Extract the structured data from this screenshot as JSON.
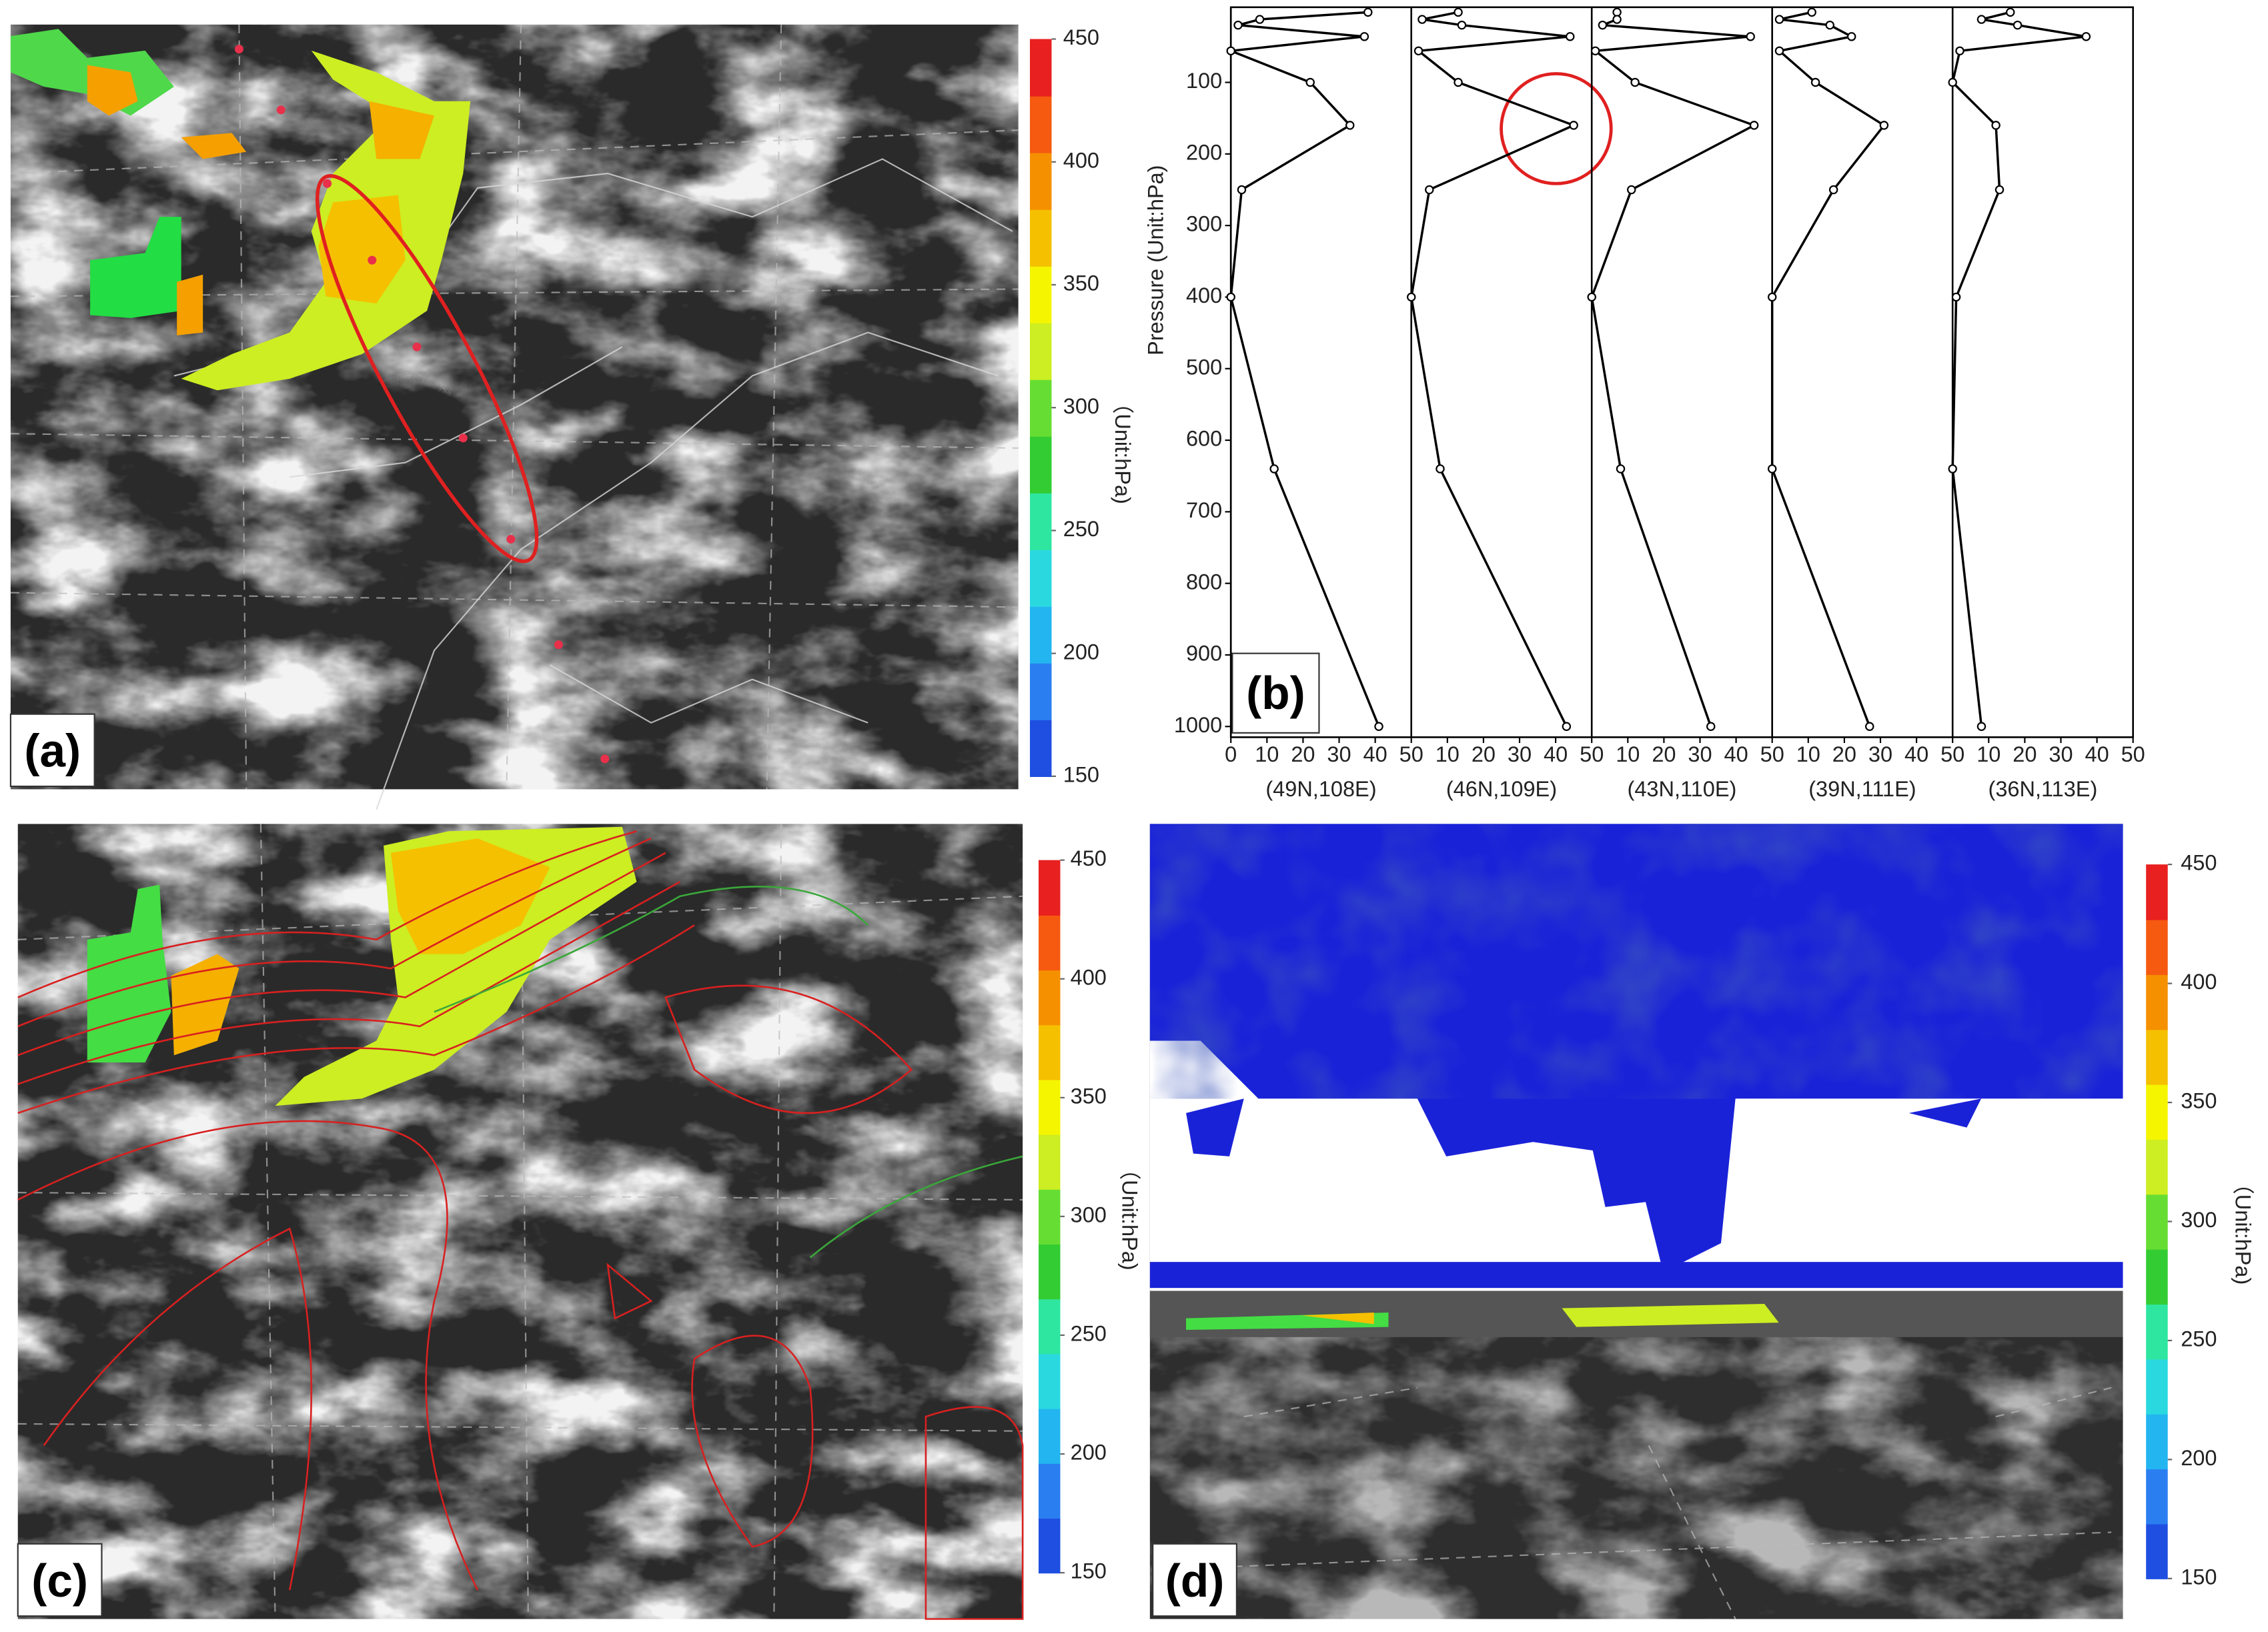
{
  "chart_data": [
    {
      "type": "map",
      "label": "(a)",
      "colorbar_label": "（Unit:hPa)",
      "colorbar_lim": [
        150,
        450
      ],
      "colorbar_ticks": [
        150,
        200,
        250,
        300,
        350,
        400,
        450
      ],
      "colorbar_colors": [
        "#1f4fe0",
        "#2a7ef0",
        "#22b5f0",
        "#2ad8e0",
        "#2ee6a0",
        "#33cc33",
        "#66dd33",
        "#ccee22",
        "#f5f500",
        "#f5c000",
        "#f59000",
        "#f55a10",
        "#e82020"
      ]
    },
    {
      "type": "profile",
      "label": "(b)",
      "ylabel": "Pressure (Unit:hPa)",
      "xlabel": "(49N,108E)",
      "xlim": [
        0,
        50
      ],
      "xticks": [
        0,
        10,
        20,
        30,
        40,
        50
      ],
      "ylim": [
        1015,
        -5
      ],
      "yticks": [
        100,
        200,
        300,
        400,
        500,
        600,
        700,
        800,
        900,
        1000
      ],
      "y": [
        2,
        12,
        20,
        36,
        56,
        100,
        160,
        250,
        400,
        640,
        1000
      ],
      "values": [
        38,
        8,
        2,
        37,
        0,
        22,
        33,
        3,
        0,
        12,
        41
      ],
      "color": "#000000"
    },
    {
      "type": "profile",
      "xlabel": "(46N,109E)",
      "xlim": [
        0,
        50
      ],
      "xticks": [
        10,
        20,
        30,
        40,
        50
      ],
      "ylim": [
        1015,
        -5
      ],
      "y": [
        2,
        12,
        20,
        36,
        56,
        100,
        160,
        250,
        400,
        640,
        1000
      ],
      "values": [
        13,
        3,
        14,
        44,
        2,
        13,
        45,
        5,
        0,
        8,
        43
      ],
      "color": "#000000"
    },
    {
      "type": "profile",
      "xlabel": "(43N,110E)",
      "xlim": [
        0,
        50
      ],
      "xticks": [
        10,
        20,
        30,
        40,
        50
      ],
      "ylim": [
        1015,
        -5
      ],
      "y": [
        2,
        12,
        20,
        36,
        56,
        100,
        160,
        250,
        400,
        640,
        1000
      ],
      "values": [
        7,
        7,
        3,
        44,
        1,
        12,
        45,
        11,
        0,
        8,
        33
      ],
      "color": "#000000"
    },
    {
      "type": "profile",
      "xlabel": "(39N,111E)",
      "xlim": [
        0,
        50
      ],
      "xticks": [
        10,
        20,
        30,
        40,
        50
      ],
      "ylim": [
        1015,
        -5
      ],
      "y": [
        2,
        12,
        20,
        36,
        56,
        100,
        160,
        250,
        400,
        640,
        1000
      ],
      "values": [
        11,
        2,
        16,
        22,
        2,
        12,
        31,
        17,
        0,
        0,
        27
      ],
      "color": "#000000"
    },
    {
      "type": "profile",
      "xlabel": "(36N,113E)",
      "xlim": [
        0,
        50
      ],
      "xticks": [
        10,
        20,
        30,
        40,
        50
      ],
      "ylim": [
        1015,
        -5
      ],
      "y": [
        2,
        12,
        20,
        36,
        56,
        100,
        160,
        250,
        400,
        640,
        1000
      ],
      "values": [
        16,
        8,
        18,
        37,
        2,
        0,
        12,
        13,
        1,
        0,
        8
      ],
      "color": "#000000"
    },
    {
      "type": "map",
      "label": "(c)",
      "colorbar_label": "（Unit:hPa)",
      "colorbar_lim": [
        150,
        450
      ],
      "colorbar_ticks": [
        150,
        200,
        250,
        300,
        350,
        400,
        450
      ],
      "colorbar_colors": [
        "#1f4fe0",
        "#2a7ef0",
        "#22b5f0",
        "#2ad8e0",
        "#2ee6a0",
        "#33cc33",
        "#66dd33",
        "#ccee22",
        "#f5f500",
        "#f5c000",
        "#f59000",
        "#f55a10",
        "#e82020"
      ]
    },
    {
      "type": "map",
      "label": "(d)",
      "colorbar_label": "（Unit:hPa)",
      "colorbar_lim": [
        150,
        450
      ],
      "colorbar_ticks": [
        150,
        200,
        250,
        300,
        350,
        400,
        450
      ],
      "colorbar_colors": [
        "#1f4fe0",
        "#2a7ef0",
        "#22b5f0",
        "#2ad8e0",
        "#2ee6a0",
        "#33cc33",
        "#66dd33",
        "#ccee22",
        "#f5f500",
        "#f5c000",
        "#f59000",
        "#f55a10",
        "#e82020"
      ]
    }
  ]
}
